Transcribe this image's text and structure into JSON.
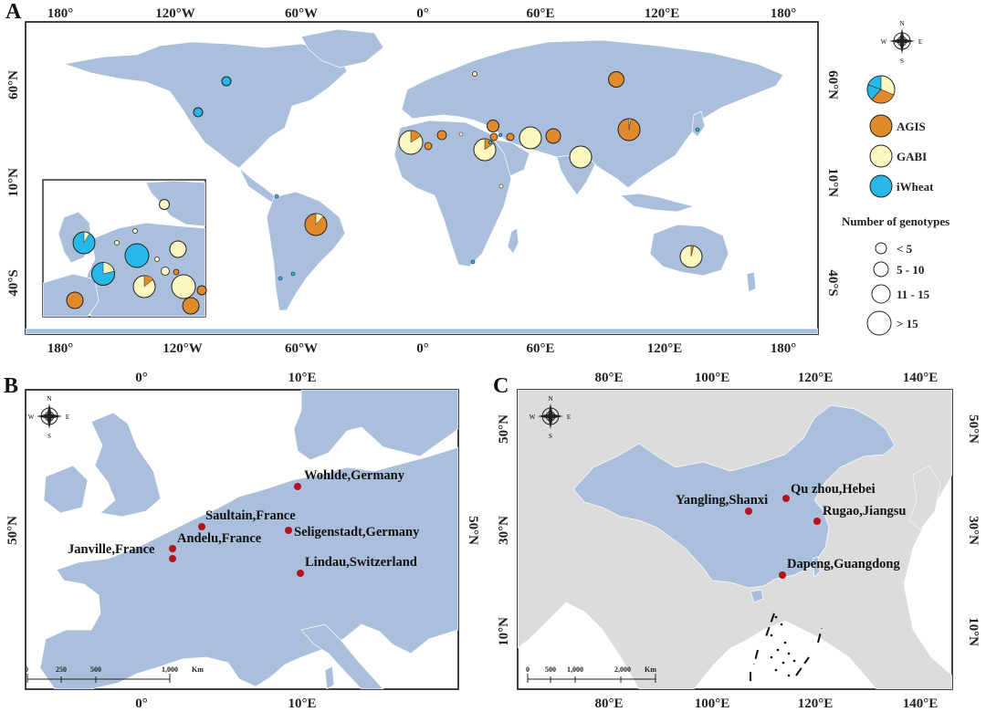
{
  "panels": {
    "a": {
      "label": "A",
      "top_ticks": [
        "180°",
        "120°W",
        "60°W",
        "0°",
        "60°E",
        "120°E",
        "180°"
      ],
      "bottom_ticks": [
        "180°",
        "120°W",
        "60°W",
        "0°",
        "60°E",
        "120°E",
        "180°"
      ],
      "left_ticks": [
        "60°N",
        "10°N",
        "40°S"
      ],
      "right_ticks": [
        "60°N",
        "10°N",
        "40°S"
      ],
      "legend": {
        "sources": [
          {
            "name": "AGIS",
            "color": "#e08a2c"
          },
          {
            "name": "GABI",
            "color": "#fdf8c0"
          },
          {
            "name": "iWheat",
            "color": "#25b8e8"
          }
        ],
        "size_title": "Number of genotypes",
        "size_classes": [
          "< 5",
          "5 - 10",
          "11 - 15",
          "> 15"
        ]
      }
    },
    "b": {
      "label": "B",
      "top_ticks": [
        "0°",
        "10°E"
      ],
      "bottom_ticks": [
        "0°",
        "10°E"
      ],
      "left_ticks": [
        "50°N"
      ],
      "right_ticks": [
        "50°N"
      ],
      "sites": [
        "Wohlde,Germany",
        "Saultain,France",
        "Andelu,France",
        "Seligenstadt,Germany",
        "Janville,France",
        "Lindau,Switzerland"
      ],
      "scale_labels": [
        "0",
        "250",
        "500",
        "1,000",
        "Km"
      ]
    },
    "c": {
      "label": "C",
      "top_ticks": [
        "80°E",
        "100°E",
        "120°E",
        "140°E"
      ],
      "bottom_ticks": [
        "80°E",
        "100°E",
        "120°E",
        "140°E"
      ],
      "left_ticks": [
        "50°N",
        "30°N",
        "10°N"
      ],
      "right_ticks": [
        "50°N",
        "30°N",
        "10°N"
      ],
      "sites": [
        "Qu zhou,Hebei",
        "Yangling,Shanxi",
        "Rugao,Jiangsu",
        "Dapeng,Guangdong"
      ],
      "scale_labels": [
        "0",
        "500",
        "1,000",
        "2,000",
        "Km"
      ]
    }
  },
  "compass": {
    "n": "N",
    "s": "S",
    "e": "E",
    "w": "W"
  },
  "colors": {
    "land": "#a9bfdc",
    "ocean": "#ffffff",
    "site_marker": "#b8111b"
  }
}
